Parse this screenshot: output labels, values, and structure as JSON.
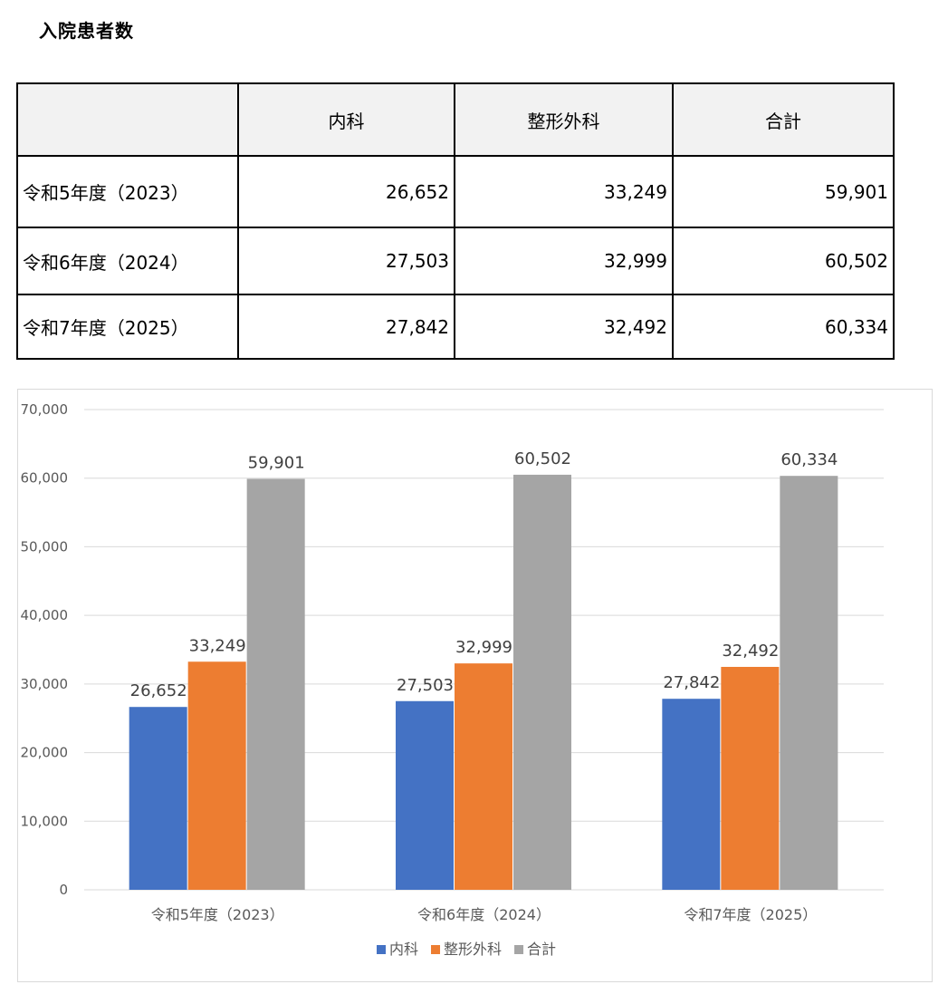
{
  "page": {
    "title": "入院患者数"
  },
  "table": {
    "headers": [
      "",
      "内科",
      "整形外科",
      "合計"
    ],
    "rows": [
      {
        "label": "令和5年度（2023）",
        "values": [
          "26,652",
          "33,249",
          "59,901"
        ]
      },
      {
        "label": "令和6年度（2024）",
        "values": [
          "27,503",
          "32,999",
          "60,502"
        ]
      },
      {
        "label": "令和7年度（2025）",
        "values": [
          "27,842",
          "32,492",
          "60,334"
        ]
      }
    ]
  },
  "chart_data": {
    "type": "bar",
    "title": "",
    "xlabel": "",
    "ylabel": "",
    "categories": [
      "令和5年度（2023）",
      "令和6年度（2024）",
      "令和7年度（2025）"
    ],
    "series": [
      {
        "name": "内科",
        "color": "#4472c4",
        "values": [
          26652,
          27503,
          27842
        ],
        "labels": [
          "26,652",
          "27,503",
          "27,842"
        ]
      },
      {
        "name": "整形外科",
        "color": "#ed7d31",
        "values": [
          33249,
          32999,
          32492
        ],
        "labels": [
          "33,249",
          "32,999",
          "32,492"
        ]
      },
      {
        "name": "合計",
        "color": "#a5a5a5",
        "values": [
          59901,
          60502,
          60334
        ],
        "labels": [
          "59,901",
          "60,502",
          "60,334"
        ]
      }
    ],
    "ylim": [
      0,
      70000
    ],
    "yticks": [
      0,
      10000,
      20000,
      30000,
      40000,
      50000,
      60000,
      70000
    ],
    "ytick_labels": [
      "0",
      "10,000",
      "20,000",
      "30,000",
      "40,000",
      "50,000",
      "60,000",
      "70,000"
    ],
    "grid": true,
    "legend": "bottom-center"
  }
}
